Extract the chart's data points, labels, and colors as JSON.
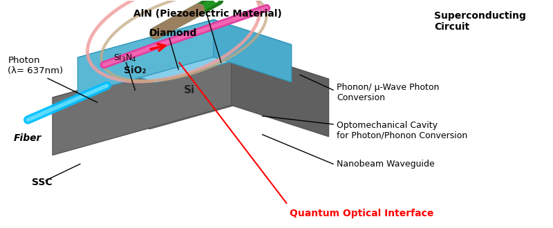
{
  "bg_color": "#ffffff",
  "labels": {
    "aln": "AlN (Piezoelectric Material)",
    "diamond": "Diamond",
    "si3n4": "Si₃N₄",
    "photon": "Photon\n(λ= 637nm)",
    "fiber": "Fiber",
    "ssc": "SSC",
    "sio2": "SiO₂",
    "si": "Si",
    "superconducting": "Superconducting\nCircuit",
    "phonon": "Phonon/ μ-Wave Photon\nConversion",
    "optomechanical": "Optomechanical Cavity\nfor Photon/Phonon Conversion",
    "nanobeam": "Nanobeam Waveguide",
    "quantum": "Quantum Optical Interface"
  }
}
